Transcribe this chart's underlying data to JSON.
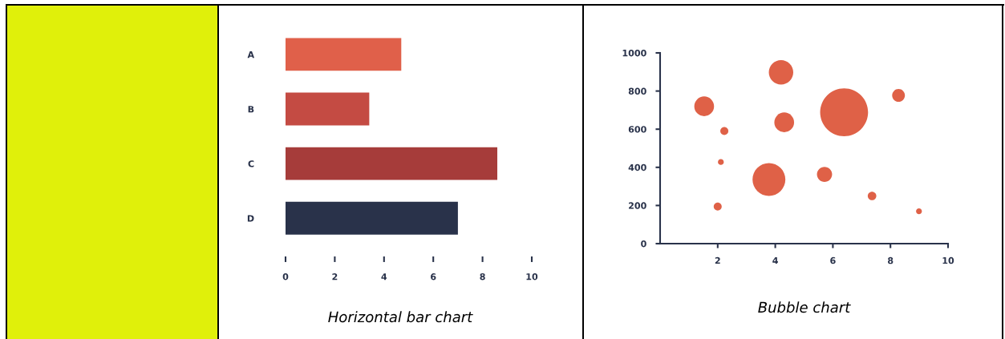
{
  "chart_data": [
    {
      "type": "bar",
      "orientation": "horizontal",
      "categories": [
        "A",
        "B",
        "C",
        "D"
      ],
      "values": [
        4.7,
        3.4,
        8.6,
        7.0
      ],
      "colors": [
        "#e0604a",
        "#c44b43",
        "#a63c3a",
        "#29324a"
      ],
      "xlim": [
        0,
        10
      ],
      "xticks": [
        0,
        2,
        4,
        6,
        8,
        10
      ],
      "grid": false,
      "annotations": [
        "Horizontal bar chart"
      ]
    },
    {
      "type": "bubble",
      "color": "#df6147",
      "x": [
        1.53,
        2.23,
        2.11,
        2.0,
        4.2,
        4.31,
        3.78,
        5.71,
        6.39,
        8.28,
        7.36,
        8.99
      ],
      "values": [
        720,
        590,
        428,
        194,
        898,
        636,
        336,
        363,
        689,
        777,
        250,
        170
      ],
      "sizes": [
        0.17,
        0.028,
        0.015,
        0.028,
        0.26,
        0.17,
        0.47,
        0.1,
        1,
        0.071,
        0.032,
        0.015
      ],
      "xlim": [
        0,
        10
      ],
      "xticks": [
        2,
        4,
        6,
        8,
        10
      ],
      "ylim": [
        0,
        1000
      ],
      "yticks": [
        0,
        200,
        400,
        600,
        800,
        1000
      ],
      "grid": false,
      "annotations": [
        "Bubble chart"
      ]
    }
  ]
}
